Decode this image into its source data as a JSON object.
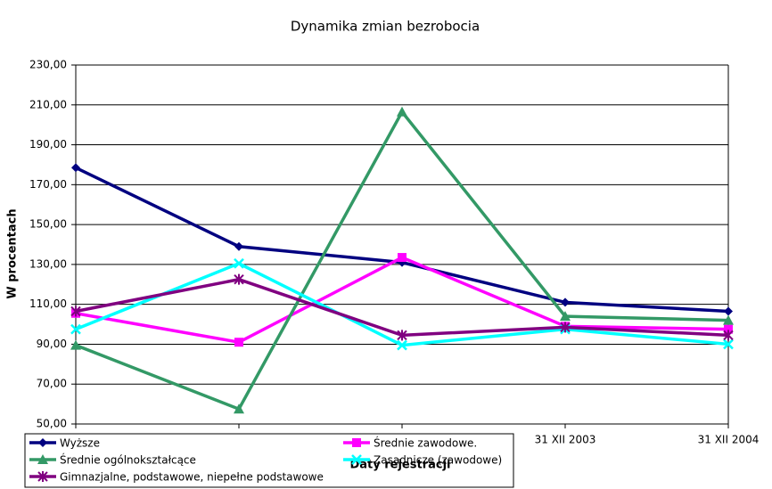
{
  "chart_data": {
    "type": "line",
    "title": "Dynamika zmian bezrobocia",
    "xlabel": "Daty rejestracji",
    "ylabel": "W procentach",
    "categories": [
      null,
      null,
      null,
      "31 XII 2003",
      "31 XII 2004"
    ],
    "ylim": [
      50,
      230
    ],
    "yticks": [
      {
        "value": 50,
        "label": "50,00"
      },
      {
        "value": 70,
        "label": "70,00"
      },
      {
        "value": 90,
        "label": "90,00"
      },
      {
        "value": 110,
        "label": "110,00"
      },
      {
        "value": 130,
        "label": "130,00"
      },
      {
        "value": 150,
        "label": "150,00"
      },
      {
        "value": 170,
        "label": "170,00"
      },
      {
        "value": 190,
        "label": "190,00"
      },
      {
        "value": 210,
        "label": "210,00"
      },
      {
        "value": 230,
        "label": "230,00"
      }
    ],
    "grid": true,
    "legend": "bottom-left",
    "series": [
      {
        "name": "Wyższe",
        "color": "#000080",
        "marker": "diamond",
        "values": [
          178.5,
          139,
          131,
          111,
          106.5
        ]
      },
      {
        "name": "Średnie zawodowe.",
        "color": "#ff00ff",
        "marker": "square",
        "values": [
          105.5,
          91,
          133.5,
          99,
          97.5
        ]
      },
      {
        "name": "Średnie ogólnokształcące",
        "color": "#339966",
        "marker": "triangle",
        "values": [
          89.5,
          57.5,
          206.5,
          104,
          102
        ]
      },
      {
        "name": "Zasadnicze (zawodowe)",
        "color": "#00ffff",
        "marker": "x",
        "values": [
          97.5,
          130.5,
          89.5,
          97.5,
          90
        ]
      },
      {
        "name": "Gimnazjalne, podstawowe, niepełne podstawowe",
        "color": "#800080",
        "marker": "star",
        "values": [
          106.5,
          122.5,
          94.5,
          98.5,
          94.5
        ]
      }
    ]
  }
}
